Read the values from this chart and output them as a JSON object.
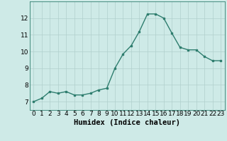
{
  "x": [
    0,
    1,
    2,
    3,
    4,
    5,
    6,
    7,
    8,
    9,
    10,
    11,
    12,
    13,
    14,
    15,
    16,
    17,
    18,
    19,
    20,
    21,
    22,
    23
  ],
  "y": [
    7.0,
    7.2,
    7.6,
    7.5,
    7.6,
    7.4,
    7.4,
    7.5,
    7.7,
    7.8,
    9.0,
    9.85,
    10.35,
    11.2,
    12.25,
    12.25,
    12.0,
    11.1,
    10.25,
    10.1,
    10.1,
    9.7,
    9.45,
    9.45
  ],
  "xlabel": "Humidex (Indice chaleur)",
  "ylim": [
    6.5,
    13.0
  ],
  "xlim": [
    -0.5,
    23.5
  ],
  "yticks": [
    7,
    8,
    9,
    10,
    11,
    12
  ],
  "xticks": [
    0,
    1,
    2,
    3,
    4,
    5,
    6,
    7,
    8,
    9,
    10,
    11,
    12,
    13,
    14,
    15,
    16,
    17,
    18,
    19,
    20,
    21,
    22,
    23
  ],
  "line_color": "#2e7d6e",
  "marker": "s",
  "marker_size": 2.0,
  "bg_color": "#ceeae7",
  "grid_color": "#b0cfcc",
  "tick_label_fontsize": 6.5,
  "xlabel_fontsize": 7.5,
  "line_width": 1.0
}
